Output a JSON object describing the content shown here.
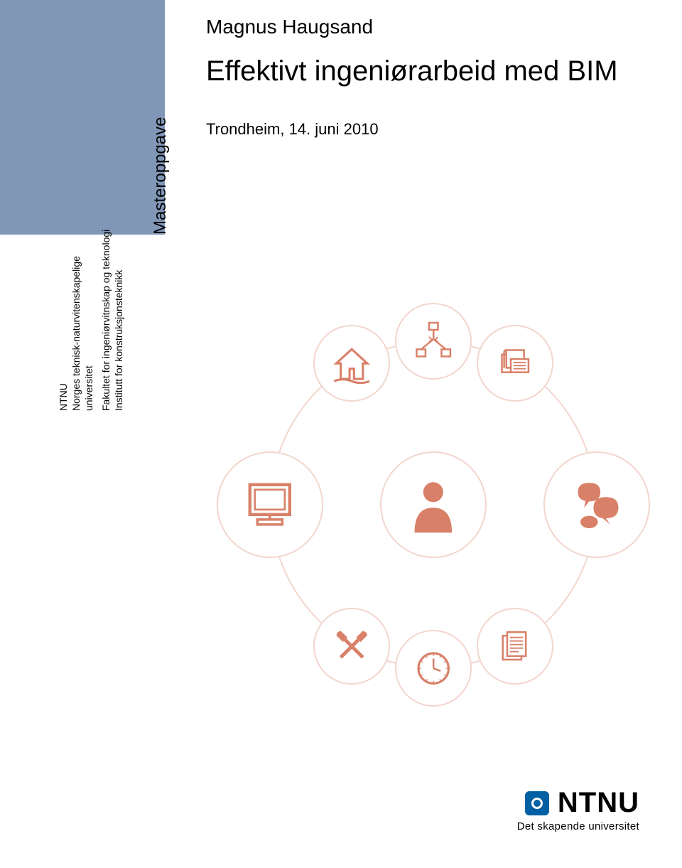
{
  "header": {
    "author": "Magnus Haugsand",
    "title": "Effektivt ingeniørarbeid med BIM",
    "date": "Trondheim, 14. juni 2010"
  },
  "sidebar": {
    "thesis_type": "Masteroppgave",
    "lines": [
      "NTNU",
      "Norges teknisk-naturvitenskapelige",
      "universitet",
      "Fakultet for ingeniørvitnskap og teknologi",
      "Institutt for konstruksjonsteknikk"
    ],
    "bar_color": "#8197b8"
  },
  "diagram": {
    "ring_color": "#f2d6cd",
    "center": {
      "icon": "person-icon",
      "color": "#d98068",
      "size": "large"
    },
    "outer_nodes": [
      {
        "icon": "house-icon",
        "angle_deg": -120,
        "color": "#d98068",
        "size": "small"
      },
      {
        "icon": "network-icon",
        "angle_deg": -90,
        "color": "#d98068",
        "size": "small"
      },
      {
        "icon": "books-icon",
        "angle_deg": -60,
        "color": "#d98068",
        "size": "small"
      },
      {
        "icon": "computer-icon",
        "angle_deg": 180,
        "color": "#d98068",
        "size": "large"
      },
      {
        "icon": "chat-icon",
        "angle_deg": 0,
        "color": "#d98068",
        "size": "large"
      },
      {
        "icon": "tools-icon",
        "angle_deg": 120,
        "color": "#d98068",
        "size": "small"
      },
      {
        "icon": "clock-icon",
        "angle_deg": 90,
        "color": "#d98068",
        "size": "small"
      },
      {
        "icon": "document-icon",
        "angle_deg": 60,
        "color": "#d98068",
        "size": "small"
      }
    ],
    "ring_radius": 230,
    "small_d": 108,
    "large_d": 150
  },
  "logo": {
    "square_color": "#0060a3",
    "text": "NTNU",
    "tagline": "Det skapende universitet"
  }
}
